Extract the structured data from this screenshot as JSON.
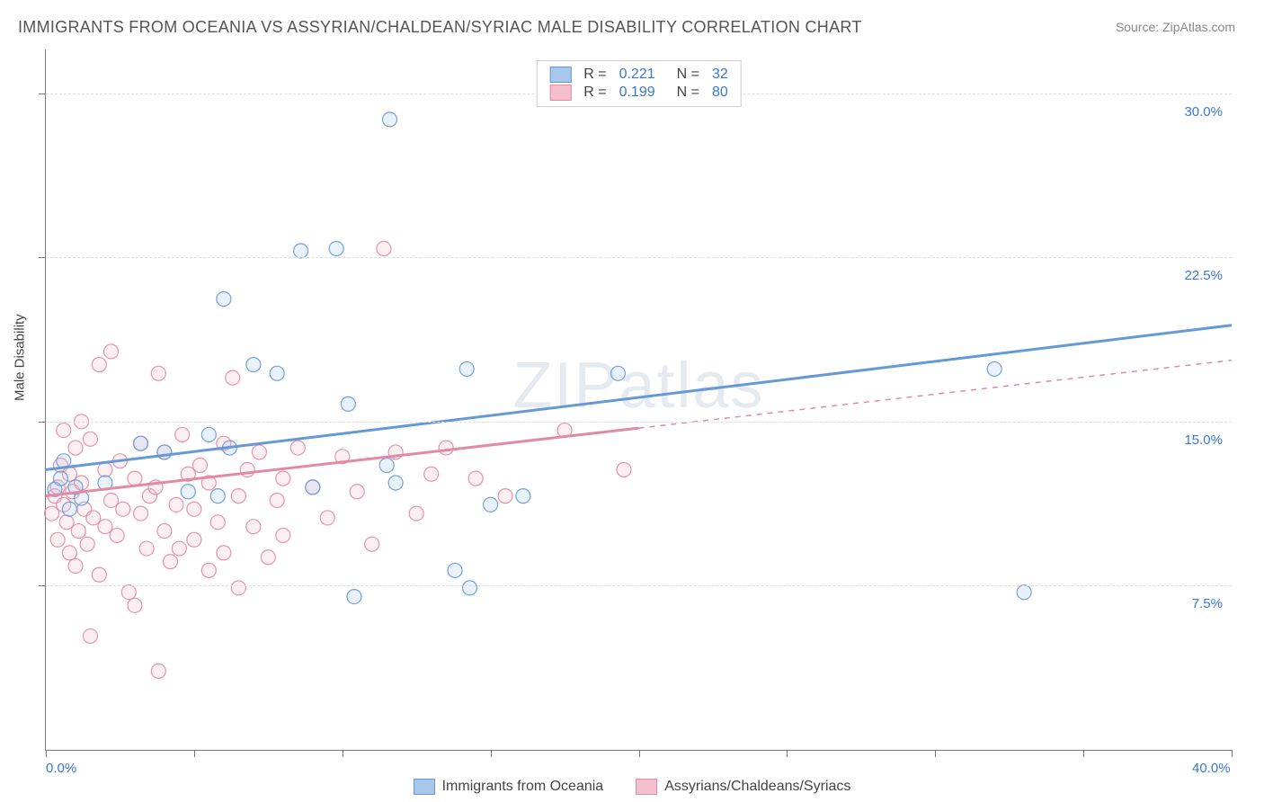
{
  "title": "IMMIGRANTS FROM OCEANIA VS ASSYRIAN/CHALDEAN/SYRIAC MALE DISABILITY CORRELATION CHART",
  "source": "Source: ZipAtlas.com",
  "watermark": "ZIPatlas",
  "y_axis_title": "Male Disability",
  "chart": {
    "type": "scatter",
    "xlim": [
      0,
      40
    ],
    "ylim": [
      0,
      32
    ],
    "x_ticks": [
      0,
      5,
      10,
      15,
      20,
      25,
      30,
      35,
      40
    ],
    "y_gridlines": [
      7.5,
      15.0,
      22.5,
      30.0
    ],
    "x_tick_labels": {
      "0": "0.0%",
      "40": "40.0%"
    },
    "y_tick_labels": {
      "7.5": "7.5%",
      "15.0": "15.0%",
      "22.5": "22.5%",
      "30.0": "30.0%"
    },
    "background_color": "#ffffff",
    "grid_color": "#dddddd",
    "axis_color": "#777777",
    "label_color": "#3a78d8",
    "marker_radius": 8,
    "marker_fill_opacity": 0.25,
    "marker_stroke_opacity": 0.9,
    "trend_line_width": 3,
    "trend_dash_width": 1.5
  },
  "series": [
    {
      "key": "oceania",
      "label": "Immigrants from Oceania",
      "color": "#6599d6",
      "fill": "#a9c7ea",
      "R": "0.221",
      "N": "32",
      "trend": {
        "x1": 0,
        "y1": 12.8,
        "x2": 40,
        "y2": 19.4,
        "solid_until_x": 40
      },
      "points": [
        [
          0.3,
          11.9
        ],
        [
          0.5,
          12.4
        ],
        [
          0.6,
          13.2
        ],
        [
          0.8,
          11.0
        ],
        [
          1.0,
          12.0
        ],
        [
          1.2,
          11.5
        ],
        [
          2.0,
          12.2
        ],
        [
          3.2,
          14.0
        ],
        [
          4.0,
          13.6
        ],
        [
          4.8,
          11.8
        ],
        [
          5.5,
          14.4
        ],
        [
          5.8,
          11.6
        ],
        [
          6.0,
          20.6
        ],
        [
          6.2,
          13.8
        ],
        [
          7.0,
          17.6
        ],
        [
          7.8,
          17.2
        ],
        [
          8.6,
          22.8
        ],
        [
          9.0,
          12.0
        ],
        [
          9.8,
          22.9
        ],
        [
          10.2,
          15.8
        ],
        [
          10.4,
          7.0
        ],
        [
          11.5,
          13.0
        ],
        [
          11.6,
          28.8
        ],
        [
          11.8,
          12.2
        ],
        [
          13.8,
          8.2
        ],
        [
          14.2,
          17.4
        ],
        [
          14.3,
          7.4
        ],
        [
          15.0,
          11.2
        ],
        [
          16.1,
          11.6
        ],
        [
          19.3,
          17.2
        ],
        [
          32.0,
          17.4
        ],
        [
          33.0,
          7.2
        ]
      ]
    },
    {
      "key": "assyrian",
      "label": "Assyrians/Chaldeans/Syriacs",
      "color": "#e28aa3",
      "fill": "#f3bfcd",
      "R": "0.199",
      "N": "80",
      "trend": {
        "x1": 0,
        "y1": 11.6,
        "x2": 40,
        "y2": 17.8,
        "solid_until_x": 20
      },
      "points": [
        [
          0.2,
          10.8
        ],
        [
          0.3,
          11.6
        ],
        [
          0.4,
          12.0
        ],
        [
          0.4,
          9.6
        ],
        [
          0.5,
          13.0
        ],
        [
          0.6,
          11.2
        ],
        [
          0.6,
          14.6
        ],
        [
          0.7,
          10.4
        ],
        [
          0.8,
          12.6
        ],
        [
          0.8,
          9.0
        ],
        [
          0.9,
          11.8
        ],
        [
          1.0,
          13.8
        ],
        [
          1.0,
          8.4
        ],
        [
          1.1,
          10.0
        ],
        [
          1.2,
          15.0
        ],
        [
          1.2,
          12.2
        ],
        [
          1.3,
          11.0
        ],
        [
          1.4,
          9.4
        ],
        [
          1.5,
          14.2
        ],
        [
          1.6,
          10.6
        ],
        [
          1.8,
          17.6
        ],
        [
          1.8,
          8.0
        ],
        [
          2.0,
          12.8
        ],
        [
          2.0,
          10.2
        ],
        [
          2.2,
          11.4
        ],
        [
          2.2,
          18.2
        ],
        [
          2.4,
          9.8
        ],
        [
          2.5,
          13.2
        ],
        [
          2.6,
          11.0
        ],
        [
          2.8,
          7.2
        ],
        [
          3.0,
          12.4
        ],
        [
          3.0,
          6.6
        ],
        [
          3.2,
          10.8
        ],
        [
          3.2,
          14.0
        ],
        [
          3.4,
          9.2
        ],
        [
          3.5,
          11.6
        ],
        [
          3.7,
          12.0
        ],
        [
          3.8,
          17.2
        ],
        [
          4.0,
          10.0
        ],
        [
          4.0,
          13.6
        ],
        [
          4.2,
          8.6
        ],
        [
          4.4,
          11.2
        ],
        [
          4.5,
          9.2
        ],
        [
          4.6,
          14.4
        ],
        [
          4.8,
          12.6
        ],
        [
          5.0,
          9.6
        ],
        [
          5.0,
          11.0
        ],
        [
          5.2,
          13.0
        ],
        [
          5.5,
          8.2
        ],
        [
          5.5,
          12.2
        ],
        [
          5.8,
          10.4
        ],
        [
          6.0,
          9.0
        ],
        [
          6.0,
          14.0
        ],
        [
          6.3,
          17.0
        ],
        [
          6.5,
          11.6
        ],
        [
          6.5,
          7.4
        ],
        [
          6.8,
          12.8
        ],
        [
          7.0,
          10.2
        ],
        [
          7.2,
          13.6
        ],
        [
          7.5,
          8.8
        ],
        [
          7.8,
          11.4
        ],
        [
          8.0,
          9.8
        ],
        [
          8.0,
          12.4
        ],
        [
          8.5,
          13.8
        ],
        [
          9.0,
          12.0
        ],
        [
          9.5,
          10.6
        ],
        [
          10.0,
          13.4
        ],
        [
          10.5,
          11.8
        ],
        [
          11.0,
          9.4
        ],
        [
          11.4,
          22.9
        ],
        [
          11.8,
          13.6
        ],
        [
          12.5,
          10.8
        ],
        [
          13.0,
          12.6
        ],
        [
          13.5,
          13.8
        ],
        [
          14.5,
          12.4
        ],
        [
          15.5,
          11.6
        ],
        [
          17.5,
          14.6
        ],
        [
          19.5,
          12.8
        ],
        [
          3.8,
          3.6
        ],
        [
          1.5,
          5.2
        ]
      ]
    }
  ],
  "legend_top": {
    "r_label": "R =",
    "n_label": "N ="
  }
}
